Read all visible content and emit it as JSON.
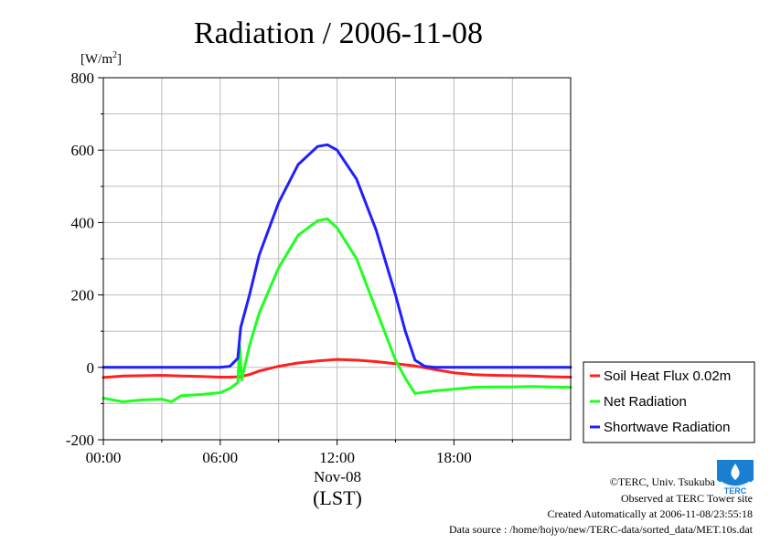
{
  "chart_data": {
    "type": "line",
    "title": "Radiation / 2006-11-08",
    "ylabel_unit": "[W/m",
    "ylabel_sup": "2",
    "ylabel_close": "]",
    "xlabel_date": "Nov-08",
    "xlabel": "(LST)",
    "ylim": [
      -200,
      800
    ],
    "xlim": [
      0,
      23.99
    ],
    "yticks": [
      "800",
      "600",
      "400",
      "200",
      "0",
      "-200"
    ],
    "ytick_values": [
      800,
      600,
      400,
      200,
      0,
      -200
    ],
    "xticks": [
      "00:00",
      "06:00",
      "12:00",
      "18:00"
    ],
    "xtick_values": [
      0,
      6,
      12,
      18
    ],
    "grid": true,
    "legend_position": "right-outside",
    "series": [
      {
        "name": "Soil Heat Flux 0.02m",
        "color": "#ff2020",
        "x": [
          0,
          1,
          2,
          3,
          4,
          5,
          6,
          6.5,
          7,
          7.5,
          8,
          9,
          10,
          11,
          12,
          13,
          14,
          15,
          16,
          17,
          18,
          19,
          20,
          21,
          22,
          23,
          23.99
        ],
        "y": [
          -28,
          -24,
          -23,
          -22,
          -24,
          -25,
          -27,
          -27,
          -26,
          -20,
          -10,
          3,
          12,
          18,
          22,
          20,
          16,
          10,
          4,
          -6,
          -15,
          -20,
          -22,
          -23,
          -24,
          -26,
          -27
        ]
      },
      {
        "name": "Net Radiation",
        "color": "#20ff20",
        "x": [
          0,
          1,
          2,
          3,
          3.5,
          4,
          5,
          6,
          6.5,
          6.9,
          7.0,
          7.1,
          7.5,
          8,
          9,
          10,
          11,
          11.5,
          12,
          13,
          14,
          15,
          15.5,
          16,
          17,
          18,
          19,
          20,
          21,
          22,
          23,
          23.99
        ],
        "y": [
          -85,
          -95,
          -90,
          -88,
          -95,
          -78,
          -75,
          -70,
          -58,
          -42,
          60,
          -35,
          60,
          150,
          275,
          365,
          405,
          410,
          385,
          300,
          160,
          20,
          -30,
          -72,
          -65,
          -60,
          -55,
          -54,
          -54,
          -53,
          -54,
          -55
        ]
      },
      {
        "name": "Shortwave Radiation",
        "color": "#2020ff",
        "x": [
          0,
          1,
          2,
          3,
          4,
          5,
          6,
          6.5,
          6.9,
          7.05,
          7.5,
          8,
          9,
          10,
          11,
          11.5,
          12,
          13,
          14,
          15,
          15.5,
          16,
          16.5,
          17,
          18,
          19,
          20,
          21,
          22,
          23,
          23.99
        ],
        "y": [
          0,
          0,
          0,
          0,
          0,
          0,
          0,
          3,
          25,
          110,
          200,
          310,
          455,
          560,
          610,
          615,
          600,
          520,
          380,
          200,
          100,
          20,
          3,
          0,
          0,
          0,
          0,
          0,
          0,
          0,
          0
        ]
      }
    ]
  },
  "credits": {
    "copyright": "©TERC, Univ. Tsukuba",
    "observed": "Observed at TERC Tower site",
    "created": "Created Automatically at 2006-11-08/23:55:18",
    "source": "Data source : /home/hojyo/new/TERC-data/sorted_data/MET.10s.dat"
  },
  "logo": {
    "text": "TERC",
    "color": "#1a7fd1",
    "icon": "terc-logo-icon"
  }
}
